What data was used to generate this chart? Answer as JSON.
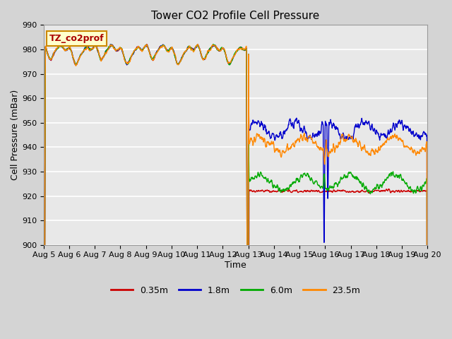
{
  "title": "Tower CO2 Profile Cell Pressure",
  "xlabel": "Time",
  "ylabel": "Cell Pressure (mBar)",
  "ylim": [
    900,
    990
  ],
  "yticks": [
    900,
    910,
    920,
    930,
    940,
    950,
    960,
    970,
    980,
    990
  ],
  "legend_label": "TZ_co2prof",
  "series_labels": [
    "0.35m",
    "1.8m",
    "6.0m",
    "23.5m"
  ],
  "series_colors": [
    "#cc0000",
    "#0000cc",
    "#00aa00",
    "#ff8800"
  ],
  "line_width": 1.0,
  "figsize": [
    6.4,
    4.8
  ],
  "dpi": 100,
  "xtick_labels": [
    "Aug 5",
    "Aug 6",
    "Aug 7",
    "Aug 8",
    "Aug 9",
    "Aug 10",
    "Aug 11",
    "Aug 12",
    "Aug 13",
    "Aug 14",
    "Aug 15",
    "Aug 16",
    "Aug 17",
    "Aug 18",
    "Aug 19",
    "Aug 20"
  ],
  "fig_bg": "#d4d4d4",
  "ax_bg": "#e8e8e8",
  "grid_color": "#ffffff"
}
